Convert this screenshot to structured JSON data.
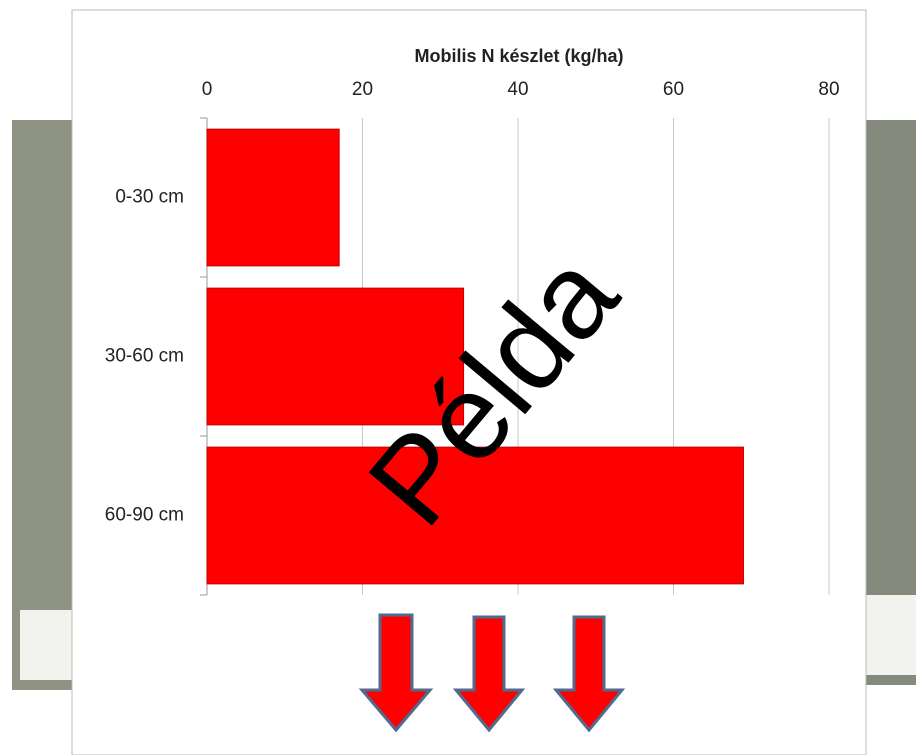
{
  "chart_data": {
    "type": "bar",
    "orientation": "horizontal",
    "title": "Mobilis N készlet (kg/ha)",
    "categories": [
      "0-30 cm",
      "30-60 cm",
      "60-90 cm"
    ],
    "values": [
      17,
      33,
      69
    ],
    "color": "#ff0000",
    "xlim": [
      0,
      80
    ],
    "xticks": [
      0,
      20,
      40,
      60,
      80
    ],
    "grid": true,
    "annotation": "Példa"
  }
}
